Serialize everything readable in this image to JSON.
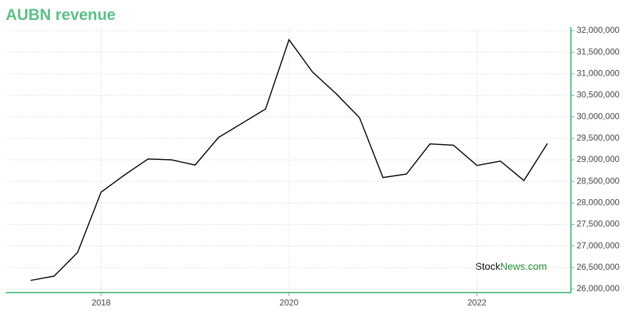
{
  "chart_data": {
    "type": "line",
    "title": "AUBN revenue",
    "x": [
      2017.25,
      2017.5,
      2017.75,
      2018,
      2018.25,
      2018.5,
      2018.75,
      2019,
      2019.25,
      2019.5,
      2019.75,
      2020,
      2020.25,
      2020.5,
      2020.75,
      2021,
      2021.25,
      2021.5,
      2021.75,
      2022,
      2022.25,
      2022.5,
      2022.75
    ],
    "series": [
      {
        "name": "AUBN",
        "color": "#000000",
        "values": [
          26200000,
          26300000,
          26850000,
          28250000,
          28650000,
          29020000,
          29000000,
          28880000,
          29520000,
          29850000,
          30180000,
          31790000,
          31040000,
          30540000,
          29980000,
          28590000,
          28670000,
          29370000,
          29340000,
          28870000,
          28970000,
          28520000,
          29380000
        ]
      }
    ],
    "xlim": [
      2017,
      2023
    ],
    "xticks": [
      2018,
      2020,
      2022
    ],
    "ylim": [
      26000000,
      32000000
    ],
    "yticks": [
      {
        "value": 26000000,
        "label": "26,000,000"
      },
      {
        "value": 26500000,
        "label": "26,500,000"
      },
      {
        "value": 27000000,
        "label": "27,000,000"
      },
      {
        "value": 27500000,
        "label": "27,500,000"
      },
      {
        "value": 28000000,
        "label": "28,000,000"
      },
      {
        "value": 28500000,
        "label": "28,500,000"
      },
      {
        "value": 29000000,
        "label": "29,000,000"
      },
      {
        "value": 29500000,
        "label": "29,500,000"
      },
      {
        "value": 30000000,
        "label": "30,000,000"
      },
      {
        "value": 30500000,
        "label": "30,500,000"
      },
      {
        "value": 31000000,
        "label": "31,000,000"
      },
      {
        "value": 31500000,
        "label": "31,500,000"
      },
      {
        "value": 32000000,
        "label": "32,000,000"
      }
    ],
    "grid": true,
    "axis_color": "#5cbf85",
    "watermark": {
      "first": "Stock",
      "second": "News.com"
    }
  }
}
